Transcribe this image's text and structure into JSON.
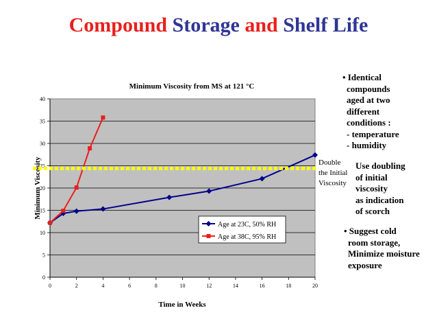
{
  "slide": {
    "title_parts": [
      {
        "text": "Compound",
        "color": "#e8201c"
      },
      {
        "text": "Storage",
        "color": "#2f3596"
      },
      {
        "text": "and",
        "color": "#e8201c"
      },
      {
        "text": "Shelf Life",
        "color": "#2f3596"
      }
    ]
  },
  "notes": {
    "first": [
      "• Identical",
      "compounds",
      "aged at two",
      "different",
      "conditions :",
      "- temperature",
      "- humidity"
    ],
    "second": [
      "Use doubling",
      "of initial",
      "viscosity",
      "as indication",
      "of scorch"
    ],
    "third": [
      "• Suggest cold",
      "room storage,",
      "Minimize moisture",
      "exposure"
    ]
  },
  "annotation": {
    "lines": [
      "Double",
      "the Initial",
      "Viscosity"
    ]
  },
  "chart_data": {
    "type": "line",
    "title": "Minimum Viscosity from MS at 121 °C",
    "xlabel": "Time in Weeks",
    "ylabel": "Minimum Viscosity",
    "xlim": [
      0,
      20
    ],
    "ylim": [
      0,
      40
    ],
    "xticks": [
      "0",
      "2",
      "4",
      "6",
      "8",
      "10",
      "12",
      "14",
      "16",
      "18",
      "20"
    ],
    "yticks": [
      "0",
      "5",
      "10",
      "15",
      "20",
      "25",
      "30",
      "35",
      "40"
    ],
    "grid": true,
    "legend_position": "center-right",
    "reference_line": {
      "y": 24.4,
      "color": "#ffff00"
    },
    "series": [
      {
        "name": "Age at 23C, 50% RH",
        "color": "#00008b",
        "marker": "diamond",
        "x": [
          0,
          1,
          2,
          4,
          9,
          12,
          16,
          20
        ],
        "y": [
          12.2,
          14.3,
          14.8,
          15.3,
          17.9,
          19.3,
          22.1,
          27.4
        ]
      },
      {
        "name": "Age at 38C, 95% RH",
        "color": "#e8201c",
        "marker": "square",
        "x": [
          0,
          1,
          2,
          3,
          4
        ],
        "y": [
          12.2,
          14.9,
          20.1,
          28.9,
          35.8
        ]
      }
    ]
  }
}
